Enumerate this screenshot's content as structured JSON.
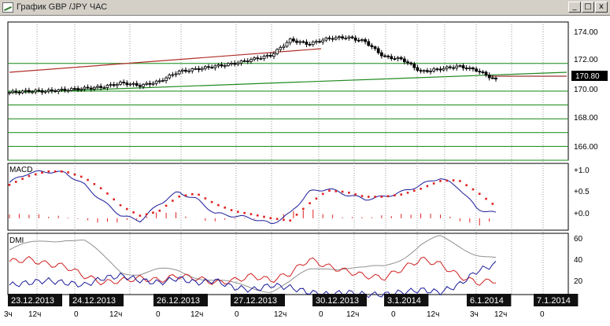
{
  "window": {
    "title": "График GBP /JPY  ЧАС",
    "minimize_glyph": "_",
    "maximize_glyph": "□",
    "close_glyph": "x"
  },
  "price_panel": {
    "y_ticks": [
      "174.00",
      "172.00",
      "170.00",
      "168.00",
      "166.00"
    ],
    "current_price": "170.80"
  },
  "macd_panel": {
    "label": "MACD",
    "y_ticks": [
      "+1.0",
      "+0.5",
      "+0.0"
    ]
  },
  "dmi_panel": {
    "label": "DMI",
    "y_ticks": [
      "60",
      "40",
      "20"
    ]
  },
  "time_axis": {
    "dates": [
      "23.12.2013",
      "24.12.2013",
      "26.12.2013",
      "27.12.2013",
      "30.12.2013",
      "3.1.2014",
      "6.1.2014",
      "7.1.2014"
    ],
    "hour_labels": [
      "3ч",
      "12ч",
      "0",
      "12ч",
      "0",
      "12ч",
      "0",
      "12ч",
      "0",
      "12ч",
      "0",
      "12ч",
      "3ч",
      "12ч",
      "0"
    ]
  },
  "colors": {
    "support_lines": "#118811",
    "trend_red": "#b0302a",
    "trend_green": "#1f8a1f",
    "macd_signal": "#e02020",
    "macd_line": "#1a1a9a",
    "dmi_adx": "#909090",
    "dmi_plus": "#d02020",
    "dmi_minus": "#1a1a9a",
    "date_label_bg": "#111111"
  },
  "chart_data": [
    {
      "type": "line",
      "title": "GBP /JPY",
      "ylim": [
        165,
        175
      ],
      "horizontal_levels": [
        172.0,
        170.0,
        169.0,
        168.0,
        167.0,
        166.0,
        165.0
      ],
      "current_price": 170.8,
      "series": [
        {
          "values": [
            169.9,
            170.0,
            170.0,
            170.1,
            170.2,
            170.3,
            170.6,
            170.4,
            170.7,
            171.4,
            171.6,
            171.8,
            172.0,
            172.3,
            172.6,
            173.7,
            173.4,
            173.8,
            173.9,
            173.6,
            172.5,
            172.3,
            171.4,
            171.6,
            171.8,
            171.5,
            170.8
          ]
        }
      ]
    },
    {
      "type": "line",
      "title": "MACD",
      "ylim": [
        -0.2,
        1.1
      ]
    },
    {
      "type": "line",
      "title": "DMI",
      "ylim": [
        10,
        62
      ]
    }
  ]
}
